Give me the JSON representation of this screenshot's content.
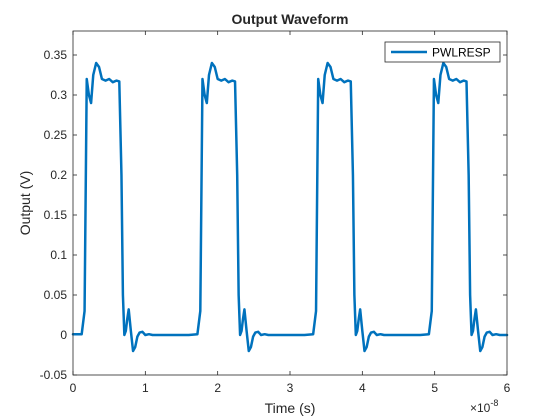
{
  "chart_data": {
    "type": "line",
    "title": "Output Waveform",
    "xlabel": "Time (s)",
    "ylabel": "Output (V)",
    "x_exponent_label": "×10",
    "x_exponent_power": "-8",
    "xlim": [
      0,
      6
    ],
    "ylim": [
      -0.05,
      0.38
    ],
    "xticks": [
      0,
      1,
      2,
      3,
      4,
      5,
      6
    ],
    "xtick_labels": [
      "0",
      "1",
      "2",
      "3",
      "4",
      "5",
      "6"
    ],
    "yticks": [
      -0.05,
      0,
      0.05,
      0.1,
      0.15,
      0.2,
      0.25,
      0.3,
      0.35
    ],
    "ytick_labels": [
      "-0.05",
      "0",
      "0.05",
      "0.1",
      "0.15",
      "0.2",
      "0.25",
      "0.3",
      "0.35"
    ],
    "grid": false,
    "legend_position": "top-right",
    "series": [
      {
        "name": "PWLRESP",
        "color": "#0072BD",
        "x": [
          0,
          0.12,
          0.16,
          0.19,
          0.22,
          0.25,
          0.28,
          0.32,
          0.36,
          0.4,
          0.45,
          0.5,
          0.55,
          0.6,
          0.64,
          0.67,
          0.69,
          0.71,
          0.73,
          0.75,
          0.77,
          0.8,
          0.83,
          0.86,
          0.89,
          0.92,
          0.96,
          1.0,
          1.05,
          1.1,
          1.2,
          1.4,
          1.6,
          1.72,
          1.76,
          1.79,
          1.82,
          1.85,
          1.88,
          1.92,
          1.96,
          2.0,
          2.05,
          2.1,
          2.15,
          2.2,
          2.24,
          2.27,
          2.29,
          2.31,
          2.33,
          2.35,
          2.37,
          2.4,
          2.43,
          2.46,
          2.49,
          2.52,
          2.56,
          2.6,
          2.65,
          2.7,
          2.8,
          3.0,
          3.2,
          3.32,
          3.36,
          3.39,
          3.42,
          3.45,
          3.48,
          3.52,
          3.56,
          3.6,
          3.65,
          3.7,
          3.75,
          3.8,
          3.84,
          3.87,
          3.89,
          3.91,
          3.93,
          3.95,
          3.97,
          4.0,
          4.03,
          4.06,
          4.09,
          4.12,
          4.16,
          4.2,
          4.25,
          4.3,
          4.4,
          4.6,
          4.8,
          4.92,
          4.96,
          4.99,
          5.02,
          5.05,
          5.08,
          5.12,
          5.16,
          5.2,
          5.25,
          5.3,
          5.35,
          5.4,
          5.44,
          5.47,
          5.49,
          5.51,
          5.53,
          5.55,
          5.57,
          5.6,
          5.63,
          5.66,
          5.69,
          5.72,
          5.76,
          5.8,
          5.85,
          5.9,
          6.0
        ],
        "y": [
          0.001,
          0.001,
          0.03,
          0.32,
          0.3,
          0.29,
          0.325,
          0.34,
          0.335,
          0.32,
          0.318,
          0.32,
          0.316,
          0.318,
          0.317,
          0.2,
          0.05,
          0.0,
          0.005,
          0.02,
          0.032,
          0.005,
          -0.02,
          -0.015,
          -0.002,
          0.003,
          0.004,
          0.0,
          0.001,
          0.0,
          0.0,
          0.0,
          0.0,
          0.001,
          0.03,
          0.32,
          0.3,
          0.29,
          0.325,
          0.34,
          0.335,
          0.32,
          0.318,
          0.32,
          0.316,
          0.318,
          0.317,
          0.2,
          0.05,
          0.0,
          0.005,
          0.02,
          0.032,
          0.005,
          -0.02,
          -0.015,
          -0.002,
          0.003,
          0.004,
          0.0,
          0.001,
          0.0,
          0.0,
          0.0,
          0.0,
          0.001,
          0.03,
          0.32,
          0.3,
          0.29,
          0.325,
          0.34,
          0.335,
          0.32,
          0.318,
          0.32,
          0.316,
          0.318,
          0.317,
          0.2,
          0.05,
          0.0,
          0.005,
          0.02,
          0.032,
          0.005,
          -0.02,
          -0.015,
          -0.002,
          0.003,
          0.004,
          0.0,
          0.001,
          0.0,
          0.0,
          0.0,
          0.0,
          0.001,
          0.03,
          0.32,
          0.3,
          0.29,
          0.325,
          0.34,
          0.335,
          0.32,
          0.318,
          0.32,
          0.316,
          0.318,
          0.317,
          0.2,
          0.05,
          0.0,
          0.005,
          0.02,
          0.032,
          0.005,
          -0.02,
          -0.015,
          -0.002,
          0.003,
          0.004,
          0.0,
          0.001,
          0.0,
          0.0
        ]
      }
    ]
  }
}
